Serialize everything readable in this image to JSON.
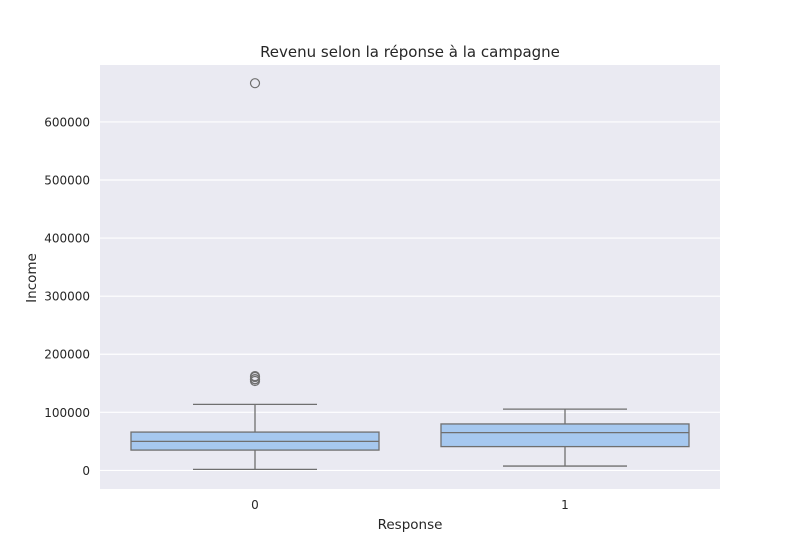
{
  "chart_data": {
    "type": "box",
    "title": "Revenu selon la réponse à la campagne",
    "xlabel": "Response",
    "ylabel": "Income",
    "categories": [
      "0",
      "1"
    ],
    "ylim": [
      -32000,
      698000
    ],
    "yticks": [
      0,
      100000,
      200000,
      300000,
      400000,
      500000,
      600000
    ],
    "ytick_labels": [
      "0",
      "100000",
      "200000",
      "300000",
      "400000",
      "500000",
      "600000"
    ],
    "grid": true,
    "box_color": "#a6c8ef",
    "line_color": "#6f6f6f",
    "background_color": "#eaeaf2",
    "boxes": [
      {
        "category": "0",
        "whisker_low": 1730,
        "q1": 35000,
        "median": 50000,
        "q3": 66000,
        "whisker_high": 113700,
        "outliers": [
          153900,
          156900,
          157200,
          160800,
          162400,
          666666
        ]
      },
      {
        "category": "1",
        "whisker_low": 7500,
        "q1": 41000,
        "median": 65000,
        "q3": 80000,
        "whisker_high": 105500,
        "outliers": []
      }
    ]
  }
}
